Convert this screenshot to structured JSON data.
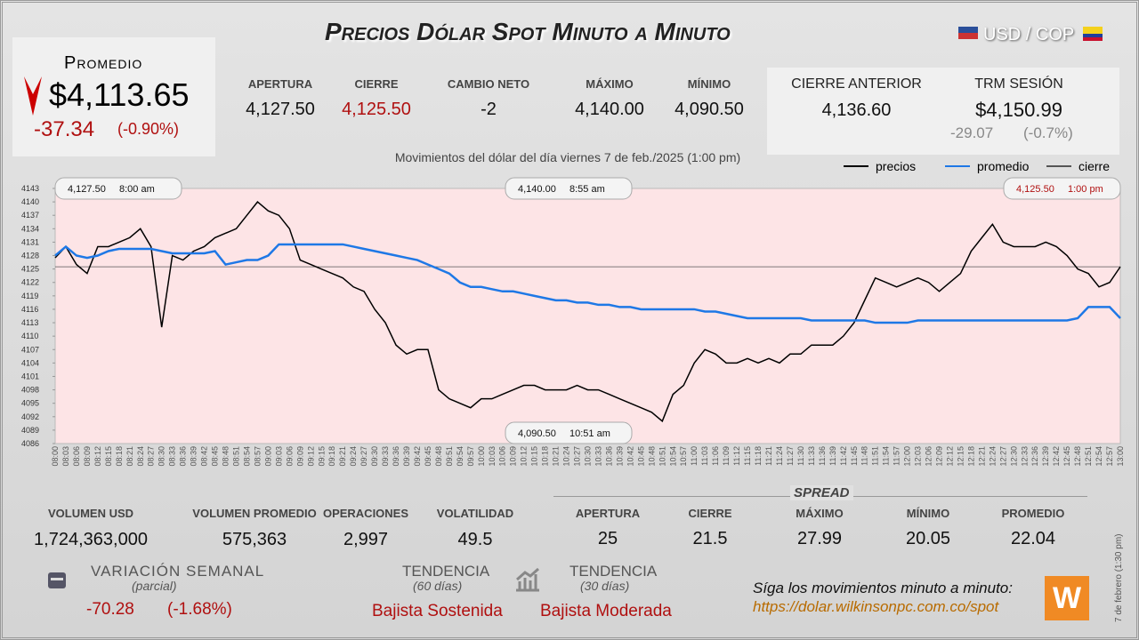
{
  "header": {
    "title": "Precios Dólar Spot Minuto a Minuto",
    "pair": "USD / COP"
  },
  "promedio": {
    "label": "Promedio",
    "value": "$4,113.65",
    "change": "-37.34",
    "pct": "(-0.90%)"
  },
  "stats": [
    {
      "label": "APERTURA",
      "value": "4,127.50"
    },
    {
      "label": "CIERRE",
      "value": "4,125.50"
    },
    {
      "label": "CAMBIO NETO",
      "value": "-2"
    },
    {
      "label": "MÁXIMO",
      "value": "4,140.00"
    },
    {
      "label": "MÍNIMO",
      "value": "4,090.50"
    }
  ],
  "previous": {
    "label": "CIERRE ANTERIOR",
    "value": "4,136.60"
  },
  "trm": {
    "label": "TRM SESIÓN",
    "value": "$4,150.99",
    "change": "-29.07",
    "pct": "(-0.7%)"
  },
  "chart_data": {
    "type": "line",
    "subtitle": "Movimientos del dólar del día viernes 7 de feb./2025 (1:00 pm)",
    "categories": [
      "08:00",
      "08:03",
      "08:06",
      "08:09",
      "08:12",
      "08:15",
      "08:18",
      "08:21",
      "08:24",
      "08:27",
      "08:30",
      "08:33",
      "08:36",
      "08:39",
      "08:42",
      "08:45",
      "08:48",
      "08:51",
      "08:54",
      "08:57",
      "09:00",
      "09:03",
      "09:06",
      "09:09",
      "09:12",
      "09:15",
      "09:18",
      "09:21",
      "09:24",
      "09:27",
      "09:30",
      "09:33",
      "09:36",
      "09:39",
      "09:42",
      "09:45",
      "09:48",
      "09:51",
      "09:54",
      "09:57",
      "10:00",
      "10:03",
      "10:06",
      "10:09",
      "10:12",
      "10:15",
      "10:18",
      "10:21",
      "10:24",
      "10:27",
      "10:30",
      "10:33",
      "10:36",
      "10:39",
      "10:42",
      "10:45",
      "10:48",
      "10:51",
      "10:54",
      "10:57",
      "11:00",
      "11:03",
      "11:06",
      "11:09",
      "11:12",
      "11:15",
      "11:18",
      "11:21",
      "11:24",
      "11:27",
      "11:30",
      "11:33",
      "11:36",
      "11:39",
      "11:42",
      "11:45",
      "11:48",
      "11:51",
      "11:54",
      "11:57",
      "12:00",
      "12:03",
      "12:06",
      "12:09",
      "12:12",
      "12:15",
      "12:18",
      "12:21",
      "12:24",
      "12:27",
      "12:30",
      "12:33",
      "12:36",
      "12:39",
      "12:42",
      "12:45",
      "12:48",
      "12:51",
      "12:54",
      "12:57",
      "13:00"
    ],
    "series": [
      {
        "name": "precios",
        "color": "#000000",
        "values": [
          4127.5,
          4130,
          4126,
          4124,
          4130,
          4130,
          4131,
          4132,
          4134,
          4130,
          4112,
          4128,
          4127,
          4129,
          4130,
          4132,
          4133,
          4134,
          4137,
          4140,
          4138,
          4137,
          4134,
          4127,
          4126,
          4125,
          4124,
          4123,
          4121,
          4120,
          4116,
          4113,
          4108,
          4106,
          4107,
          4107,
          4098,
          4096,
          4095,
          4094,
          4096,
          4096,
          4097,
          4098,
          4099,
          4099,
          4098,
          4098,
          4098,
          4099,
          4098,
          4098,
          4097,
          4096,
          4095,
          4094,
          4093,
          4091,
          4097,
          4099,
          4104,
          4107,
          4106,
          4104,
          4104,
          4105,
          4104,
          4105,
          4104,
          4106,
          4106,
          4108,
          4108,
          4108,
          4110,
          4113,
          4118,
          4123,
          4122,
          4121,
          4122,
          4123,
          4122,
          4120,
          4122,
          4124,
          4129,
          4132,
          4135,
          4131,
          4130,
          4130,
          4130,
          4131,
          4130,
          4128,
          4125,
          4124,
          4121,
          4122,
          4125.5
        ]
      },
      {
        "name": "promedio",
        "color": "#1e78e6",
        "values": [
          4128,
          4130,
          4128,
          4127.5,
          4128,
          4129,
          4129.5,
          4129.5,
          4129.5,
          4129.5,
          4129,
          4128.5,
          4128.5,
          4128.5,
          4128.5,
          4129,
          4126,
          4126.5,
          4127,
          4127,
          4128,
          4130.5,
          4130.5,
          4130.5,
          4130.5,
          4130.5,
          4130.5,
          4130.5,
          4130,
          4129.5,
          4129,
          4128.5,
          4128,
          4127.5,
          4127,
          4126,
          4125,
          4124,
          4122,
          4121,
          4121,
          4120.5,
          4120,
          4120,
          4119.5,
          4119,
          4118.5,
          4118,
          4118,
          4117.5,
          4117.5,
          4117,
          4117,
          4116.5,
          4116.5,
          4116,
          4116,
          4116,
          4116,
          4116,
          4116,
          4115.5,
          4115.5,
          4115,
          4114.5,
          4114,
          4114,
          4114,
          4114,
          4114,
          4114,
          4113.5,
          4113.5,
          4113.5,
          4113.5,
          4113.5,
          4113.5,
          4113,
          4113,
          4113,
          4113,
          4113.5,
          4113.5,
          4113.5,
          4113.5,
          4113.5,
          4113.5,
          4113.5,
          4113.5,
          4113.5,
          4113.5,
          4113.5,
          4113.5,
          4113.5,
          4113.5,
          4113.5,
          4114,
          4116.5,
          4116.5,
          4116.5,
          4114
        ]
      }
    ],
    "reference": {
      "name": "cierre",
      "value": 4125.5,
      "color": "#555555"
    },
    "ylim": [
      4086,
      4143
    ],
    "yticks": [
      4086,
      4089,
      4092,
      4095,
      4098,
      4101,
      4104,
      4107,
      4110,
      4113,
      4116,
      4119,
      4122,
      4125,
      4128,
      4131,
      4134,
      4137,
      4140,
      4143
    ],
    "annotations": [
      {
        "value": "4,127.50",
        "time": "8:00 am"
      },
      {
        "value": "4,140.00",
        "time": "8:55 am"
      },
      {
        "value": "4,125.50",
        "time": "1:00 pm"
      },
      {
        "value": "4,090.50",
        "time": "10:51 am"
      }
    ]
  },
  "volume": [
    {
      "label": "VOLUMEN USD",
      "value": "1,724,363,000"
    },
    {
      "label": "VOLUMEN PROMEDIO",
      "value": "575,363"
    },
    {
      "label": "OPERACIONES",
      "value": "2,997"
    },
    {
      "label": "VOLATILIDAD",
      "value": "49.5"
    }
  ],
  "spread": {
    "title": "SPREAD",
    "items": [
      {
        "label": "APERTURA",
        "value": "25"
      },
      {
        "label": "CIERRE",
        "value": "21.5"
      },
      {
        "label": "MÁXIMO",
        "value": "27.99"
      },
      {
        "label": "MÍNIMO",
        "value": "20.05"
      },
      {
        "label": "PROMEDIO",
        "value": "22.04"
      }
    ]
  },
  "weekly": {
    "label": "VARIACIÓN SEMANAL",
    "note": "(parcial)",
    "change": "-70.28",
    "pct": "(-1.68%)"
  },
  "trends": [
    {
      "label": "TENDENCIA",
      "note": "(60 días)",
      "value": "Bajista Sostenida"
    },
    {
      "label": "TENDENCIA",
      "note": "(30 días)",
      "value": "Bajista Moderada"
    }
  ],
  "footer": {
    "cta": "Síga los movimientos minuto a minuto:",
    "url": "https://dolar.wilkinsonpc.com.co/spot",
    "stamp": "7 de febrero (1:30 pm)",
    "logo": "W"
  }
}
